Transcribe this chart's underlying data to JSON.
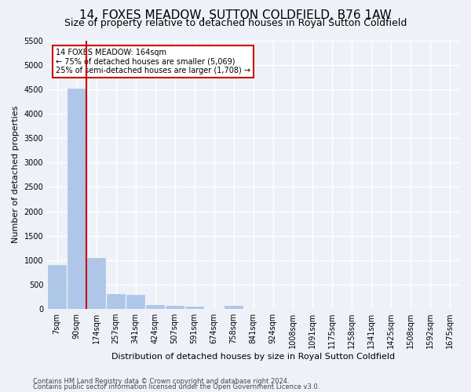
{
  "title": "14, FOXES MEADOW, SUTTON COLDFIELD, B76 1AW",
  "subtitle": "Size of property relative to detached houses in Royal Sutton Coldfield",
  "xlabel": "Distribution of detached houses by size in Royal Sutton Coldfield",
  "ylabel": "Number of detached properties",
  "footnote1": "Contains HM Land Registry data © Crown copyright and database right 2024.",
  "footnote2": "Contains public sector information licensed under the Open Government Licence v3.0.",
  "bar_labels": [
    "7sqm",
    "90sqm",
    "174sqm",
    "257sqm",
    "341sqm",
    "424sqm",
    "507sqm",
    "591sqm",
    "674sqm",
    "758sqm",
    "841sqm",
    "924sqm",
    "1008sqm",
    "1091sqm",
    "1175sqm",
    "1258sqm",
    "1341sqm",
    "1425sqm",
    "1508sqm",
    "1592sqm",
    "1675sqm"
  ],
  "bar_values": [
    900,
    4520,
    1050,
    300,
    290,
    80,
    65,
    50,
    0,
    65,
    0,
    0,
    0,
    0,
    0,
    0,
    0,
    0,
    0,
    0,
    0
  ],
  "bar_color": "#aec6e8",
  "bar_edgecolor": "#aec6e8",
  "vline_x_index": 2,
  "vline_color": "#cc0000",
  "annotation_text": "14 FOXES MEADOW: 164sqm\n← 75% of detached houses are smaller (5,069)\n25% of semi-detached houses are larger (1,708) →",
  "annotation_box_edgecolor": "#cc0000",
  "ylim": [
    0,
    5500
  ],
  "yticks": [
    0,
    500,
    1000,
    1500,
    2000,
    2500,
    3000,
    3500,
    4000,
    4500,
    5000,
    5500
  ],
  "bg_color": "#eef2f8",
  "plot_bg_color": "#eef2f8",
  "grid_color": "#ffffff",
  "title_fontsize": 11,
  "subtitle_fontsize": 9,
  "axis_label_fontsize": 8,
  "tick_fontsize": 7,
  "annotation_fontsize": 7,
  "footnote_fontsize": 6
}
